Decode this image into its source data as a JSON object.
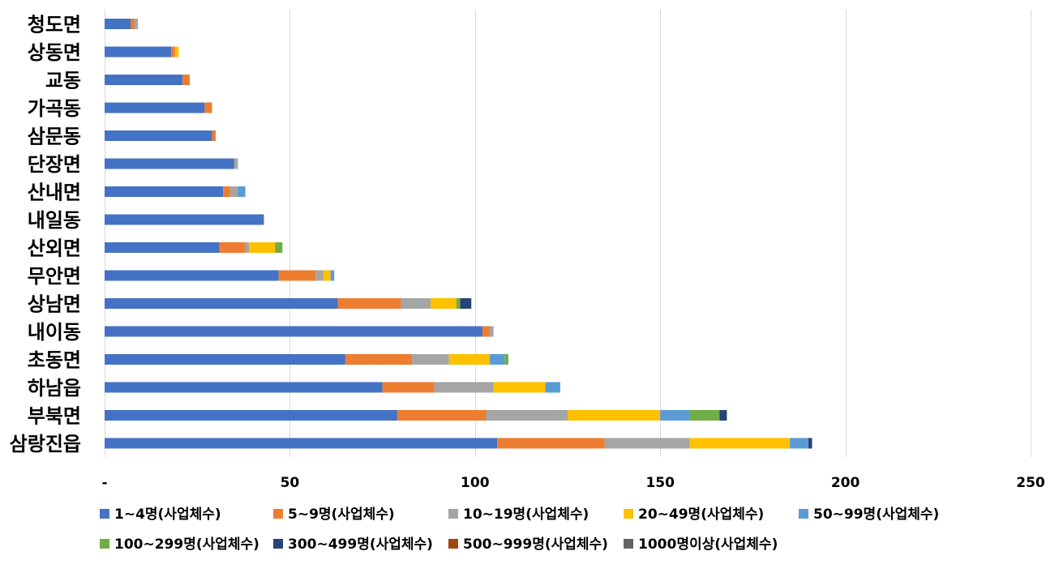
{
  "chart_data": {
    "type": "bar",
    "orientation": "horizontal",
    "stacked": true,
    "title": "",
    "xlabel": "",
    "ylabel": "",
    "xlim": [
      0,
      250
    ],
    "x_ticks": [
      0,
      50,
      100,
      150,
      200,
      250
    ],
    "x_tick_labels": [
      "-",
      "50",
      "100",
      "150",
      "200",
      "250"
    ],
    "grid": true,
    "legend_position": "bottom",
    "categories": [
      "청도면",
      "상동면",
      "교동",
      "가곡동",
      "삼문동",
      "단장면",
      "산내면",
      "내일동",
      "산외면",
      "무안면",
      "상남면",
      "내이동",
      "초동면",
      "하남읍",
      "부북면",
      "삼랑진읍"
    ],
    "series": [
      {
        "name": "1~4명(사업체수)",
        "color": "#4472C4",
        "values": [
          7,
          18,
          21,
          27,
          29,
          35,
          32,
          43,
          31,
          47,
          63,
          102,
          65,
          75,
          79,
          106
        ]
      },
      {
        "name": "5~9명(사업체수)",
        "color": "#ED7D31",
        "values": [
          1,
          1,
          2,
          2,
          1,
          0,
          2,
          0,
          7,
          10,
          17,
          2,
          18,
          14,
          24,
          29
        ]
      },
      {
        "name": "10~19명(사업체수)",
        "color": "#A5A5A5",
        "values": [
          1,
          0,
          0,
          0,
          0,
          1,
          2,
          0,
          1,
          2,
          8,
          1,
          10,
          16,
          22,
          23
        ]
      },
      {
        "name": "20~49명(사업체수)",
        "color": "#FFC000",
        "values": [
          0,
          1,
          0,
          0,
          0,
          0,
          0,
          0,
          7,
          2,
          7,
          0,
          11,
          14,
          25,
          27
        ]
      },
      {
        "name": "50~99명(사업체수)",
        "color": "#5B9BD5",
        "values": [
          0,
          0,
          0,
          0,
          0,
          0,
          2,
          0,
          0,
          1,
          0,
          0,
          4,
          4,
          8,
          5
        ]
      },
      {
        "name": "100~299명(사업체수)",
        "color": "#70AD47",
        "values": [
          0,
          0,
          0,
          0,
          0,
          0,
          0,
          0,
          2,
          0,
          1,
          0,
          1,
          0,
          8,
          0
        ]
      },
      {
        "name": "300~499명(사업체수)",
        "color": "#264478",
        "values": [
          0,
          0,
          0,
          0,
          0,
          0,
          0,
          0,
          0,
          0,
          3,
          0,
          0,
          0,
          2,
          1
        ]
      },
      {
        "name": "500~999명(사업체수)",
        "color": "#9E480E",
        "values": [
          0,
          0,
          0,
          0,
          0,
          0,
          0,
          0,
          0,
          0,
          0,
          0,
          0,
          0,
          0,
          0
        ]
      },
      {
        "name": "1000명이상(사업체수)",
        "color": "#636363",
        "values": [
          0,
          0,
          0,
          0,
          0,
          0,
          0,
          0,
          0,
          0,
          0,
          0,
          0,
          0,
          0,
          0
        ]
      }
    ]
  }
}
